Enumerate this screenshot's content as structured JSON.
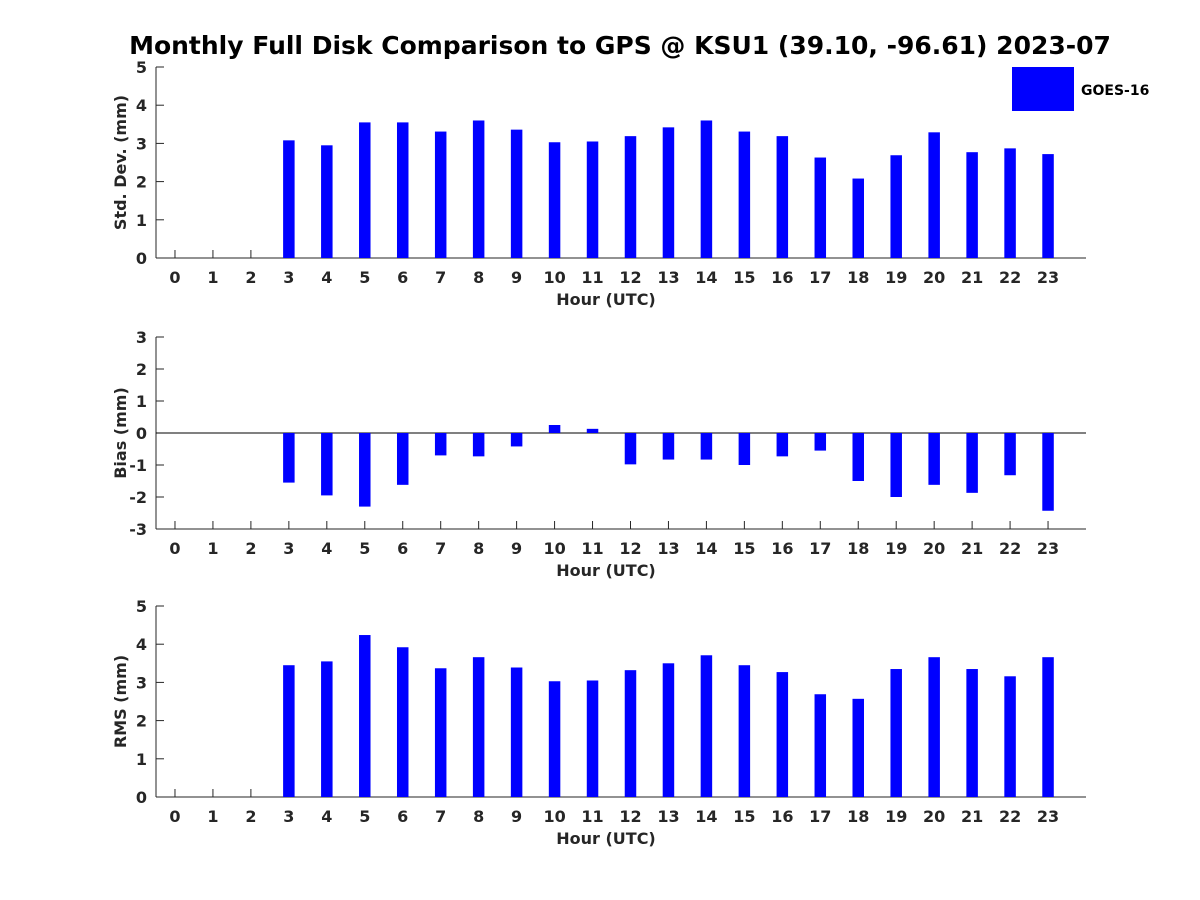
{
  "title": "Monthly Full Disk Comparison to GPS @ KSU1 (39.10, -96.61) 2023-07",
  "legend": {
    "label": "GOES-16",
    "color": "#0000ff",
    "placement": "top-right"
  },
  "chart_data": [
    {
      "type": "bar",
      "ylabel": "Std. Dev. (mm)",
      "xlabel": "Hour (UTC)",
      "ylim": [
        0,
        5
      ],
      "yticks": [
        "0",
        "1",
        "2",
        "3",
        "4",
        "5"
      ],
      "categories": [
        "0",
        "1",
        "2",
        "3",
        "4",
        "5",
        "6",
        "7",
        "8",
        "9",
        "10",
        "11",
        "12",
        "13",
        "14",
        "15",
        "16",
        "17",
        "18",
        "19",
        "20",
        "21",
        "22",
        "23"
      ],
      "series": [
        {
          "name": "GOES-16",
          "values": [
            null,
            null,
            null,
            3.08,
            2.95,
            3.55,
            3.55,
            3.31,
            3.6,
            3.36,
            3.03,
            3.05,
            3.19,
            3.42,
            3.6,
            3.31,
            3.19,
            2.63,
            2.08,
            2.69,
            3.29,
            2.77,
            2.87,
            2.72
          ]
        }
      ]
    },
    {
      "type": "bar",
      "ylabel": "Bias (mm)",
      "xlabel": "Hour (UTC)",
      "ylim": [
        -3,
        3
      ],
      "yticks": [
        "-3",
        "-2",
        "-1",
        "0",
        "1",
        "2",
        "3"
      ],
      "categories": [
        "0",
        "1",
        "2",
        "3",
        "4",
        "5",
        "6",
        "7",
        "8",
        "9",
        "10",
        "11",
        "12",
        "13",
        "14",
        "15",
        "16",
        "17",
        "18",
        "19",
        "20",
        "21",
        "22",
        "23"
      ],
      "series": [
        {
          "name": "GOES-16",
          "values": [
            null,
            null,
            null,
            -1.55,
            -1.95,
            -2.3,
            -1.62,
            -0.7,
            -0.73,
            -0.42,
            0.25,
            0.13,
            -0.98,
            -0.83,
            -0.83,
            -1.0,
            -0.73,
            -0.55,
            -1.5,
            -2.0,
            -1.62,
            -1.87,
            -1.32,
            -2.43
          ]
        }
      ]
    },
    {
      "type": "bar",
      "ylabel": "RMS (mm)",
      "xlabel": "Hour (UTC)",
      "ylim": [
        0,
        5
      ],
      "yticks": [
        "0",
        "1",
        "2",
        "3",
        "4",
        "5"
      ],
      "categories": [
        "0",
        "1",
        "2",
        "3",
        "4",
        "5",
        "6",
        "7",
        "8",
        "9",
        "10",
        "11",
        "12",
        "13",
        "14",
        "15",
        "16",
        "17",
        "18",
        "19",
        "20",
        "21",
        "22",
        "23"
      ],
      "series": [
        {
          "name": "GOES-16",
          "values": [
            null,
            null,
            null,
            3.45,
            3.55,
            4.24,
            3.92,
            3.37,
            3.66,
            3.39,
            3.03,
            3.05,
            3.32,
            3.5,
            3.71,
            3.45,
            3.27,
            2.69,
            2.57,
            3.35,
            3.66,
            3.35,
            3.16,
            3.66
          ]
        }
      ]
    }
  ]
}
